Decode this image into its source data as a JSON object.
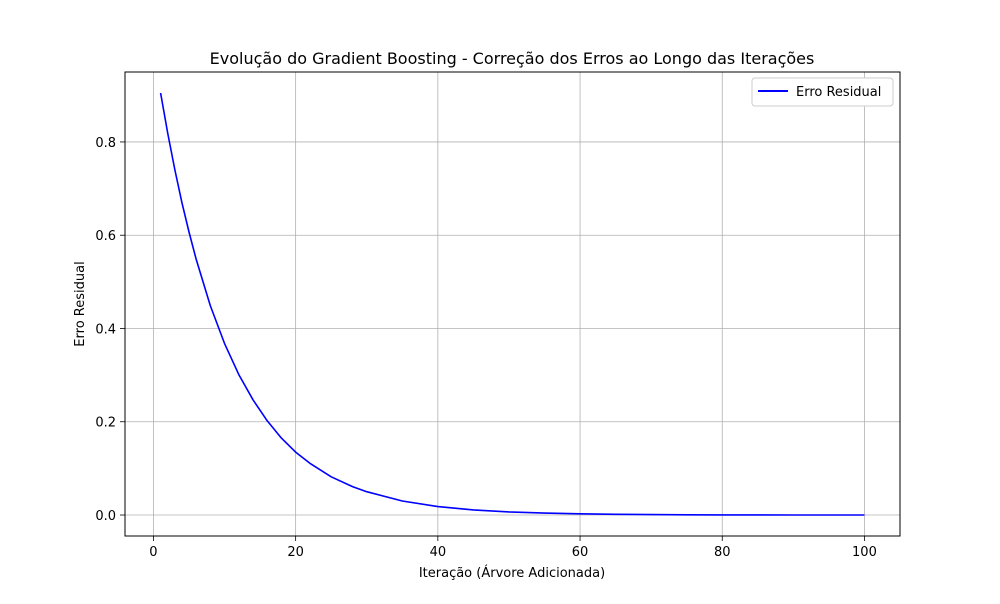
{
  "chart_data": {
    "type": "line",
    "title": "Evolução do Gradient Boosting - Correção dos Erros ao Longo das Iterações",
    "xlabel": "Iteração (Árvore Adicionada)",
    "ylabel": "Erro Residual",
    "xlim": [
      -4,
      105
    ],
    "ylim": [
      -0.045,
      0.95
    ],
    "xticks": [
      0,
      20,
      40,
      60,
      80,
      100
    ],
    "yticks": [
      0.0,
      0.2,
      0.4,
      0.6,
      0.8
    ],
    "xtick_labels": [
      "0",
      "20",
      "40",
      "60",
      "80",
      "100"
    ],
    "ytick_labels": [
      "0.0",
      "0.2",
      "0.4",
      "0.6",
      "0.8"
    ],
    "grid": true,
    "legend_position": "top-right",
    "series": [
      {
        "name": "Erro Residual",
        "color": "#0000ff",
        "x": [
          1,
          2,
          3,
          4,
          5,
          6,
          8,
          10,
          12,
          14,
          16,
          18,
          20,
          22,
          25,
          28,
          30,
          35,
          40,
          45,
          50,
          55,
          60,
          65,
          70,
          75,
          80,
          85,
          90,
          95,
          100
        ],
        "y": [
          0.905,
          0.819,
          0.741,
          0.67,
          0.607,
          0.549,
          0.449,
          0.368,
          0.301,
          0.247,
          0.202,
          0.165,
          0.135,
          0.111,
          0.082,
          0.061,
          0.05,
          0.03,
          0.018,
          0.011,
          0.0067,
          0.0041,
          0.0025,
          0.0015,
          0.0009,
          0.00055,
          0.00034,
          0.0002,
          0.00012,
          7e-05,
          5e-05
        ]
      }
    ]
  }
}
